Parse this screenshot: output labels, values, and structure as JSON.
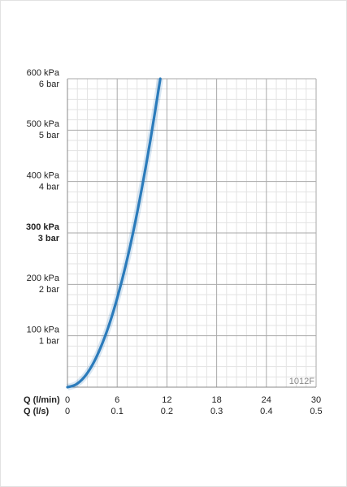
{
  "chart_data": {
    "type": "line",
    "x": [
      0,
      1,
      2,
      3,
      4,
      5,
      6,
      7,
      8,
      9,
      10,
      11.2
    ],
    "series": [
      {
        "color": "#2b7bbb",
        "values": [
          0,
          5,
          19,
          43,
          77,
          120,
          173,
          235,
          307,
          389,
          480,
          600
        ]
      }
    ],
    "xlabel": "Q (l/min)",
    "x2label": "Q (l/s)",
    "xlim": [
      0,
      30
    ],
    "xticks": [
      0,
      6,
      12,
      18,
      24,
      30
    ],
    "x2lim": [
      0,
      0.5
    ],
    "x2ticks": [
      0,
      0.1,
      0.2,
      0.3,
      0.4,
      0.5
    ],
    "ylim": [
      0,
      600
    ],
    "yticks": [
      {
        "value": 100,
        "label": "100 kPa"
      },
      {
        "value": 200,
        "label": "200 kPa"
      },
      {
        "value": 300,
        "label": "300 kPa"
      },
      {
        "value": 400,
        "label": "400 kPa"
      },
      {
        "value": 500,
        "label": "500 kPa"
      },
      {
        "value": 600,
        "label": "600 kPa"
      }
    ],
    "y2lim": [
      0,
      6
    ],
    "y2ticks": [
      {
        "value": 1,
        "label": "1 bar"
      },
      {
        "value": 2,
        "label": "2 bar"
      },
      {
        "value": 3,
        "label": "3 bar"
      },
      {
        "value": 4,
        "label": "4 bar"
      },
      {
        "value": 5,
        "label": "5 bar"
      },
      {
        "value": 6,
        "label": "6 bar"
      }
    ],
    "emphasized_ytick": 300,
    "grid": true,
    "minor_grid_divisions": 5,
    "annotation": "1012F"
  }
}
